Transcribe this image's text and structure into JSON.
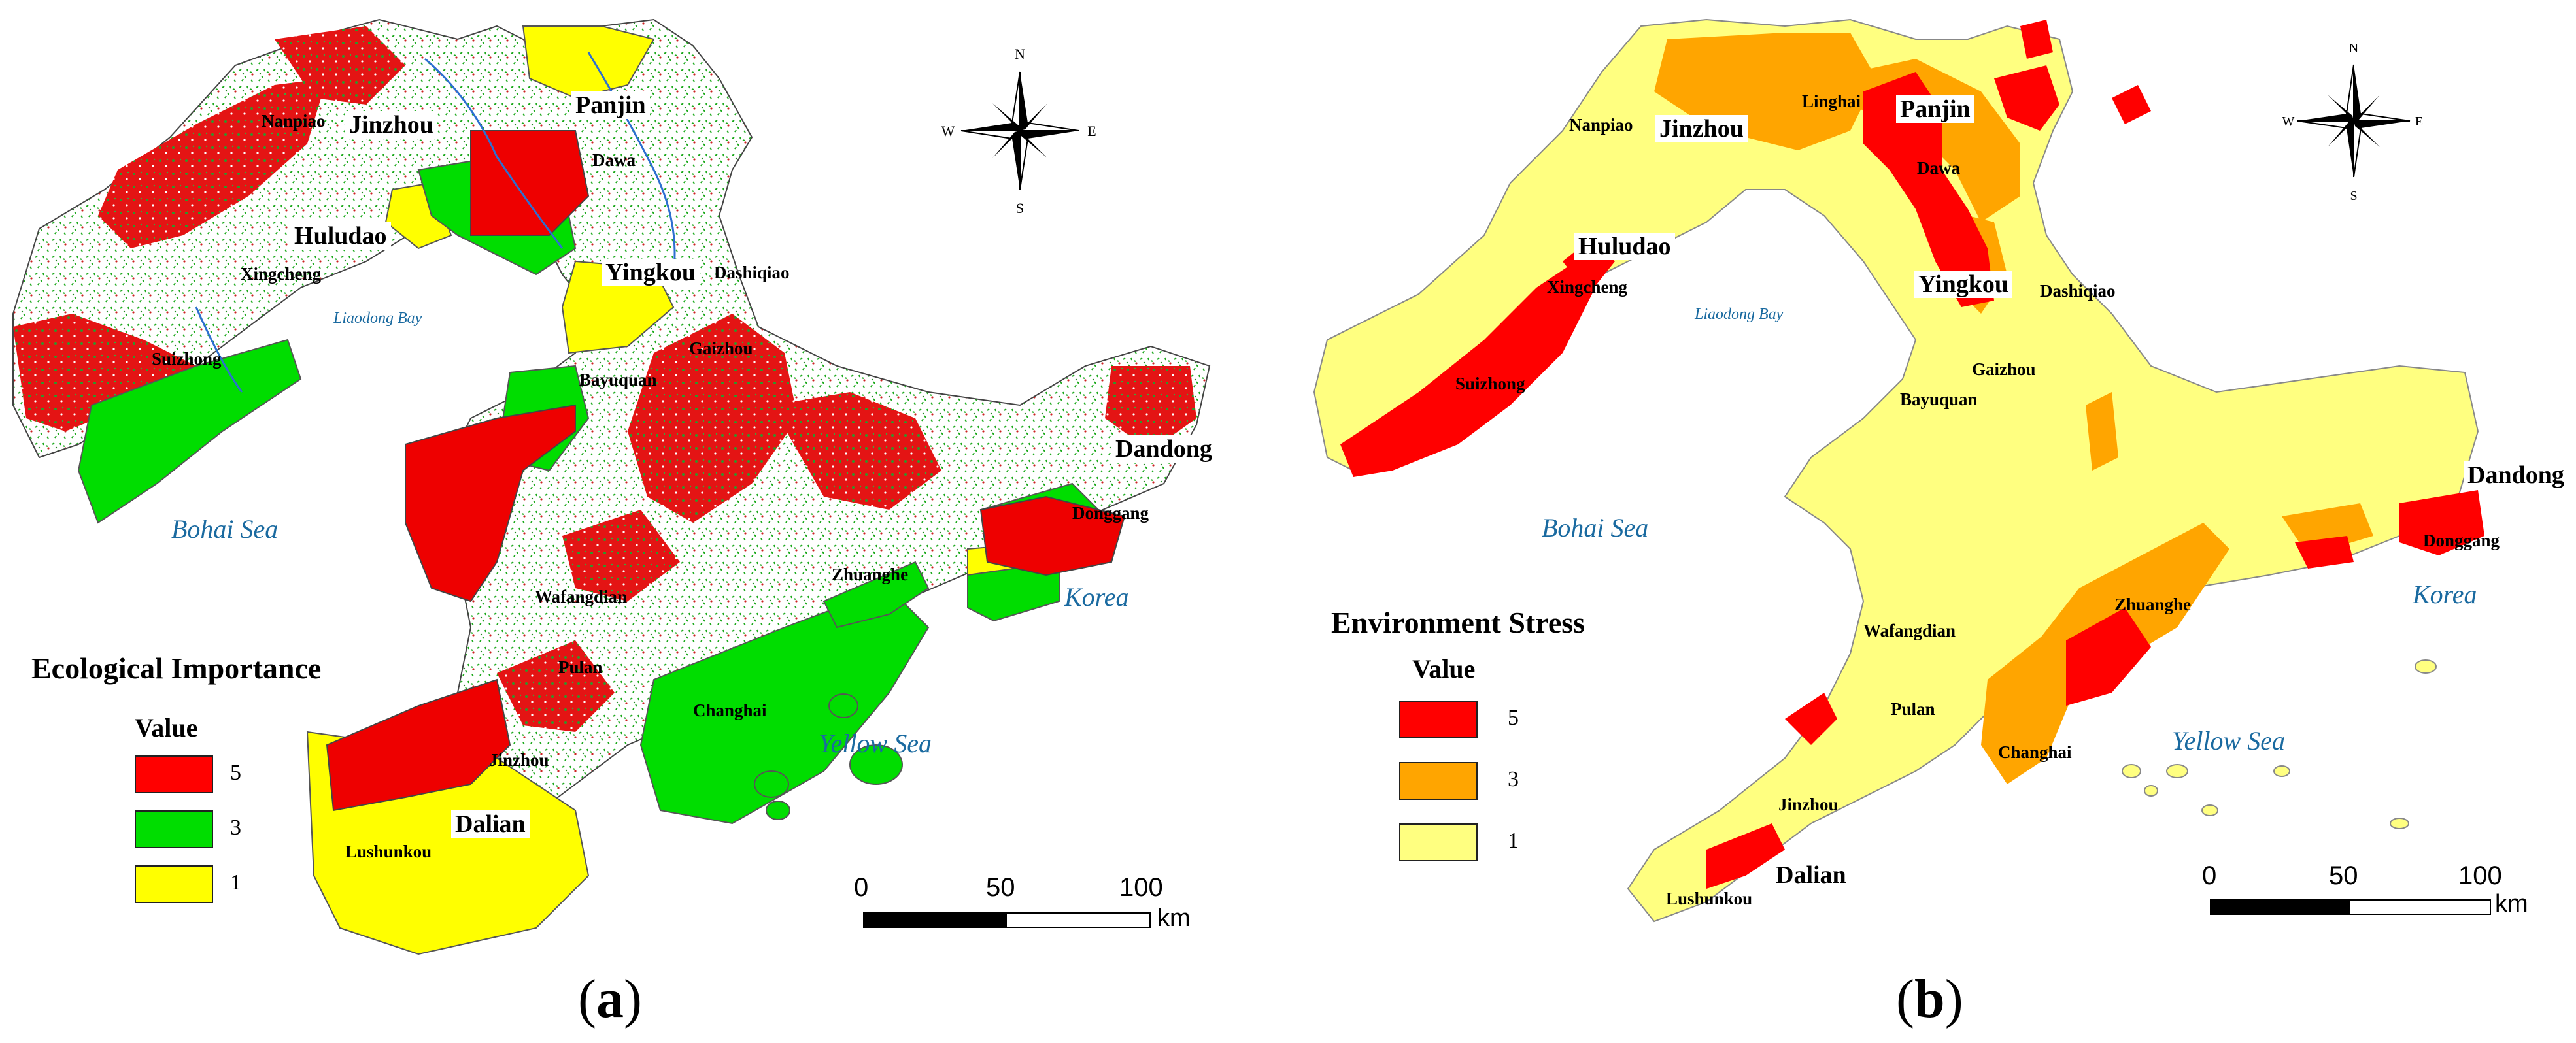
{
  "panel_a": {
    "label": "a",
    "legend": {
      "title": "Ecological Importance",
      "subtitle": "Value",
      "items": [
        {
          "label": "5",
          "color": "#ff0000"
        },
        {
          "label": "3",
          "color": "#00dd00"
        },
        {
          "label": "1",
          "color": "#ffff00"
        }
      ]
    },
    "places": {
      "nanpiao": "Nanpiao",
      "jinzhou": "Jinzhou",
      "panjin": "Panjin",
      "dawa": "Dawa",
      "huludao": "Huludao",
      "xingcheng": "Xingcheng",
      "yingkou": "Yingkou",
      "dashiqiao": "Dashiqiao",
      "suizhong": "Suizhong",
      "gaizhou": "Gaizhou",
      "bayuquan": "Bayuquan",
      "dandong": "Dandong",
      "donggang": "Donggang",
      "wafangdian": "Wafangdian",
      "zhuanghe": "Zhuanghe",
      "pulan": "Pulan",
      "changhai": "Changhai",
      "jinzhou2": "Jinzhou",
      "dalian": "Dalian",
      "lushunkou": "Lushunkou"
    },
    "seas": {
      "liaodong": "Liaodong Bay",
      "bohai": "Bohai Sea",
      "yellow": "Yellow Sea",
      "korea": "Korea"
    },
    "compass": {
      "n": "N",
      "s": "S",
      "e": "E",
      "w": "W"
    },
    "scale": {
      "ticks": [
        "0",
        "50",
        "100"
      ],
      "unit": "km"
    }
  },
  "panel_b": {
    "label": "b",
    "legend": {
      "title": "Environment Stress",
      "subtitle": "Value",
      "items": [
        {
          "label": "5",
          "color": "#ff0000"
        },
        {
          "label": "3",
          "color": "#ffa500"
        },
        {
          "label": "1",
          "color": "#ffff80"
        }
      ]
    },
    "places": {
      "nanpiao": "Nanpiao",
      "jinzhou": "Jinzhou",
      "linghai": "Linghai",
      "panjin": "Panjin",
      "dawa": "Dawa",
      "huludao": "Huludao",
      "xingcheng": "Xingcheng",
      "yingkou": "Yingkou",
      "dashiqiao": "Dashiqiao",
      "suizhong": "Suizhong",
      "gaizhou": "Gaizhou",
      "bayuquan": "Bayuquan",
      "dandong": "Dandong",
      "donggang": "Donggang",
      "wafangdian": "Wafangdian",
      "zhuanghe": "Zhuanghe",
      "pulan": "Pulan",
      "changhai": "Changhai",
      "jinzhou2": "Jinzhou",
      "dalian": "Dalian",
      "lushunkou": "Lushunkou"
    },
    "seas": {
      "liaodong": "Liaodong Bay",
      "bohai": "Bohai Sea",
      "yellow": "Yellow Sea",
      "korea": "Korea"
    },
    "compass": {
      "n": "N",
      "s": "S",
      "e": "E",
      "w": "W"
    },
    "scale": {
      "ticks": [
        "0",
        "50",
        "100"
      ],
      "unit": "km"
    }
  }
}
